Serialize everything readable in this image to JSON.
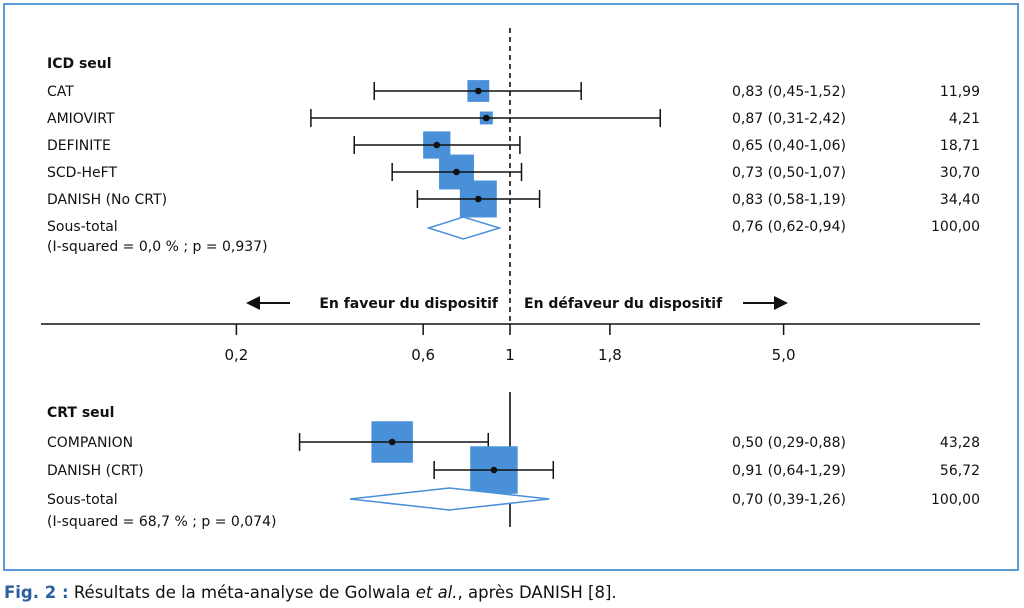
{
  "chart_data": {
    "type": "forest",
    "colors": {
      "box": "#4a90d9",
      "diamond_outline": "#4a90d9",
      "line": "#111111",
      "frame": "#5b9bd5"
    },
    "axis": {
      "scale": "log",
      "ticks": [
        "0,2",
        "0,6",
        "1",
        "1,8",
        "5,0"
      ],
      "tick_values": [
        0.2,
        0.6,
        1,
        1.8,
        5.0
      ],
      "left_label": "En faveur du dispositif",
      "right_label": "En défaveur du dispositif"
    },
    "groups": [
      {
        "title": "ICD seul",
        "studies": [
          {
            "name": "CAT",
            "estimate": 0.83,
            "ci": [
              0.45,
              1.52
            ],
            "ci_text": "0,83 (0,45-1,52)",
            "weight": 11.99,
            "weight_text": "11,99"
          },
          {
            "name": "AMIOVIRT",
            "estimate": 0.87,
            "ci": [
              0.31,
              2.42
            ],
            "ci_text": "0,87 (0,31-2,42)",
            "weight": 4.21,
            "weight_text": "4,21"
          },
          {
            "name": "DEFINITE",
            "estimate": 0.65,
            "ci": [
              0.4,
              1.06
            ],
            "ci_text": "0,65 (0,40-1,06)",
            "weight": 18.71,
            "weight_text": "18,71"
          },
          {
            "name": "SCD-HeFT",
            "estimate": 0.73,
            "ci": [
              0.5,
              1.07
            ],
            "ci_text": "0,73 (0,50-1,07)",
            "weight": 30.7,
            "weight_text": "30,70"
          },
          {
            "name": "DANISH (No CRT)",
            "estimate": 0.83,
            "ci": [
              0.58,
              1.19
            ],
            "ci_text": "0,83 (0,58-1,19)",
            "weight": 34.4,
            "weight_text": "34,40"
          }
        ],
        "subtotal": {
          "name": "Sous-total",
          "heterogeneity": "(I-squared = 0,0 % ; p = 0,937)",
          "estimate": 0.76,
          "ci": [
            0.62,
            0.94
          ],
          "ci_text": "0,76 (0,62-0,94)",
          "weight_text": "100,00"
        }
      },
      {
        "title": "CRT seul",
        "studies": [
          {
            "name": "COMPANION",
            "estimate": 0.5,
            "ci": [
              0.29,
              0.88
            ],
            "ci_text": "0,50 (0,29-0,88)",
            "weight": 43.28,
            "weight_text": "43,28"
          },
          {
            "name": "DANISH (CRT)",
            "estimate": 0.91,
            "ci": [
              0.64,
              1.29
            ],
            "ci_text": "0,91 (0,64-1,29)",
            "weight": 56.72,
            "weight_text": "56,72"
          }
        ],
        "subtotal": {
          "name": "Sous-total",
          "heterogeneity": "(I-squared = 68,7 % ; p = 0,074)",
          "estimate": 0.7,
          "ci": [
            0.39,
            1.26
          ],
          "ci_text": "0,70 (0,39-1,26)",
          "weight_text": "100,00"
        }
      }
    ]
  },
  "caption": {
    "label": "Fig. 2 :",
    "text_before": " Résultats de la méta-analyse de Golwala ",
    "text_italic": "et al.",
    "text_after": ", après DANISH [8]."
  }
}
